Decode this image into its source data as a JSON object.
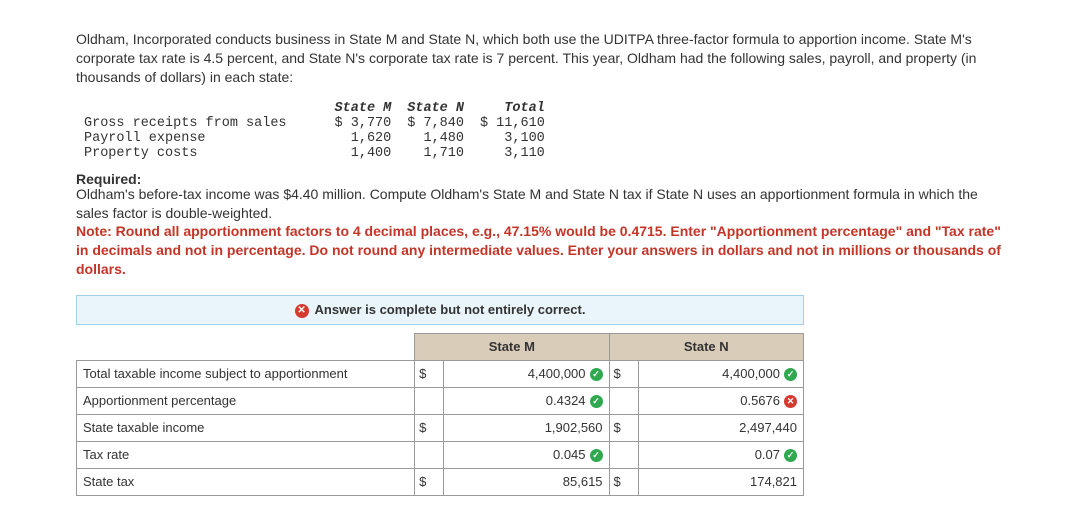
{
  "problem": "Oldham, Incorporated conducts business in State M and State N, which both use the UDITPA three-factor formula to apportion income. State M's corporate tax rate is 4.5 percent, and State N's corporate tax rate is 7 percent. This year, Oldham had the following sales, payroll, and property (in thousands of dollars) in each state:",
  "dataTable": {
    "headers": {
      "blank": "",
      "m": "State M",
      "n": "State N",
      "t": "Total"
    },
    "rows": [
      {
        "label": "Gross receipts from sales",
        "m": "$ 3,770",
        "n": "$ 7,840",
        "t": "$ 11,610"
      },
      {
        "label": "Payroll expense",
        "m": "1,620",
        "n": "1,480",
        "t": "3,100"
      },
      {
        "label": "Property costs",
        "m": "1,400",
        "n": "1,710",
        "t": "3,110"
      }
    ]
  },
  "requiredLabel": "Required:",
  "requiredText": "Oldham's before-tax income was $4.40 million. Compute Oldham's State M and State N tax if State N uses an apportionment formula in which the sales factor is double-weighted.",
  "note": "Note: Round all apportionment factors to 4 decimal places, e.g., 47.15% would be 0.4715. Enter \"Apportionment percentage\" and \"Tax rate\" in decimals and not in percentage. Do not round any intermediate values. Enter your answers in dollars and not in millions or thousands of dollars.",
  "banner": "Answer is complete but not entirely correct.",
  "answer": {
    "headers": {
      "m": "State M",
      "n": "State N"
    },
    "rows": [
      {
        "label": "Total taxable income subject to apportionment",
        "mCur": "$",
        "m": "4,400,000",
        "mMark": "ok",
        "nCur": "$",
        "n": "4,400,000",
        "nMark": "ok"
      },
      {
        "label": "Apportionment percentage",
        "mCur": "",
        "m": "0.4324",
        "mMark": "ok",
        "nCur": "",
        "n": "0.5676",
        "nMark": "bad"
      },
      {
        "label": "State taxable income",
        "mCur": "$",
        "m": "1,902,560",
        "mMark": "",
        "nCur": "$",
        "n": "2,497,440",
        "nMark": ""
      },
      {
        "label": "Tax rate",
        "mCur": "",
        "m": "0.045",
        "mMark": "ok",
        "nCur": "",
        "n": "0.07",
        "nMark": "ok"
      },
      {
        "label": "State tax",
        "mCur": "$",
        "m": "85,615",
        "mMark": "",
        "nCur": "$",
        "n": "174,821",
        "nMark": ""
      }
    ]
  }
}
